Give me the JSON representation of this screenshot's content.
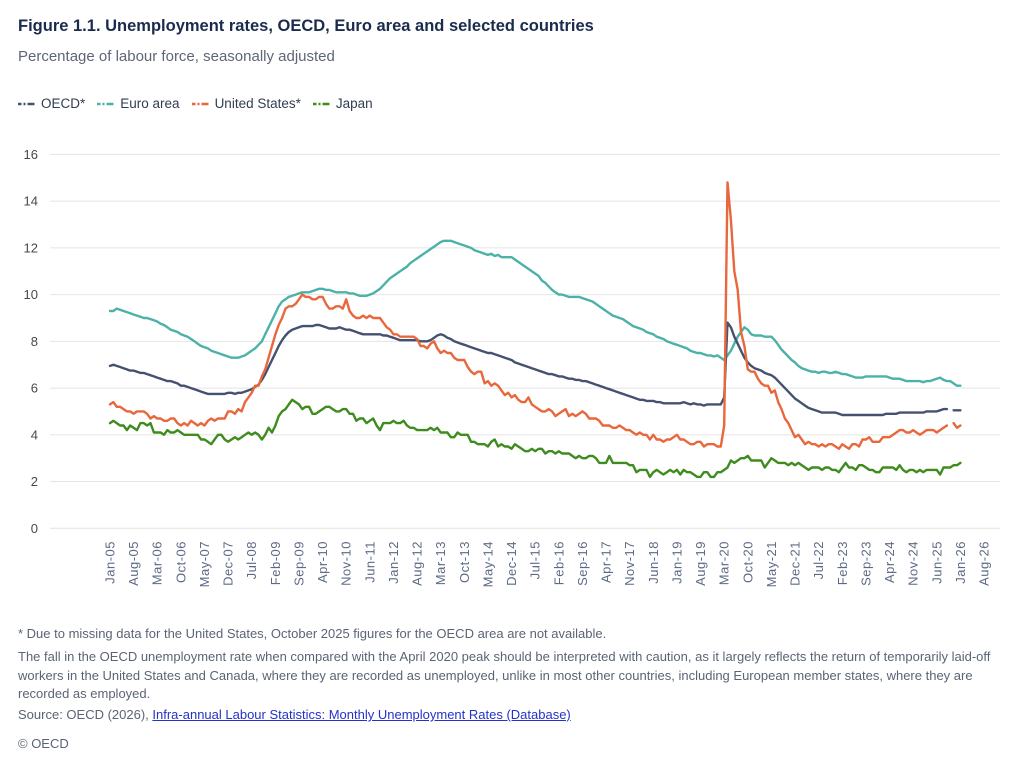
{
  "figure": {
    "title": "Figure 1.1. Unemployment rates, OECD, Euro area and selected countries",
    "subtitle": "Percentage of labour force, seasonally adjusted"
  },
  "legend": [
    {
      "label": "OECD*",
      "color": "#445270"
    },
    {
      "label": "Euro area",
      "color": "#4cb2a7"
    },
    {
      "label": "United States*",
      "color": "#e9673c"
    },
    {
      "label": "Japan",
      "color": "#3f8c1e"
    }
  ],
  "chart_data": {
    "type": "line",
    "x_unit": "month",
    "x_start": "Jan-05",
    "x_axis_end": "Aug-26",
    "x_tick_step_months": 7,
    "x_tick_labels": [
      "Jan-05",
      "Aug-05",
      "Mar-06",
      "Oct-06",
      "May-07",
      "Dec-07",
      "Jul-08",
      "Feb-09",
      "Sep-09",
      "Apr-10",
      "Nov-10",
      "Jun-11",
      "Jan-12",
      "Aug-12",
      "Mar-13",
      "Oct-13",
      "May-14",
      "Dec-14",
      "Jul-15",
      "Feb-16",
      "Sep-16",
      "Apr-17",
      "Nov-17",
      "Jun-18",
      "Jan-19",
      "Aug-19",
      "Mar-20",
      "Oct-20",
      "May-21",
      "Dec-21",
      "Jul-22",
      "Feb-23",
      "Sep-23",
      "Apr-24",
      "Nov-24",
      "Jun-25",
      "Jan-26",
      "Aug-26"
    ],
    "ylim": [
      0,
      16
    ],
    "y_ticks": [
      0,
      2,
      4,
      6,
      8,
      10,
      12,
      14,
      16
    ],
    "grid": true,
    "legend_position": "top-left",
    "series": [
      {
        "name": "OECD*",
        "color": "#445270",
        "values": [
          6.95,
          7.0,
          6.95,
          6.9,
          6.85,
          6.8,
          6.75,
          6.75,
          6.7,
          6.65,
          6.65,
          6.6,
          6.55,
          6.5,
          6.45,
          6.4,
          6.35,
          6.3,
          6.3,
          6.25,
          6.2,
          6.1,
          6.1,
          6.05,
          6.0,
          5.95,
          5.9,
          5.85,
          5.8,
          5.75,
          5.75,
          5.75,
          5.75,
          5.75,
          5.75,
          5.8,
          5.8,
          5.75,
          5.8,
          5.8,
          5.85,
          5.9,
          5.95,
          6.05,
          6.15,
          6.35,
          6.6,
          6.9,
          7.2,
          7.5,
          7.8,
          8.05,
          8.25,
          8.4,
          8.5,
          8.55,
          8.6,
          8.65,
          8.65,
          8.65,
          8.65,
          8.7,
          8.7,
          8.65,
          8.6,
          8.55,
          8.55,
          8.55,
          8.6,
          8.55,
          8.5,
          8.5,
          8.45,
          8.4,
          8.35,
          8.3,
          8.3,
          8.3,
          8.3,
          8.3,
          8.3,
          8.25,
          8.25,
          8.2,
          8.15,
          8.1,
          8.05,
          8.05,
          8.05,
          8.05,
          8.05,
          8.05,
          8.0,
          8.0,
          8.0,
          8.05,
          8.15,
          8.25,
          8.3,
          8.25,
          8.15,
          8.1,
          8.0,
          7.95,
          7.9,
          7.85,
          7.8,
          7.75,
          7.7,
          7.65,
          7.6,
          7.55,
          7.5,
          7.5,
          7.45,
          7.4,
          7.35,
          7.3,
          7.25,
          7.2,
          7.1,
          7.05,
          7.0,
          6.95,
          6.9,
          6.85,
          6.8,
          6.75,
          6.7,
          6.65,
          6.6,
          6.6,
          6.55,
          6.5,
          6.5,
          6.45,
          6.4,
          6.4,
          6.35,
          6.35,
          6.3,
          6.3,
          6.25,
          6.2,
          6.15,
          6.1,
          6.05,
          6.0,
          5.95,
          5.9,
          5.85,
          5.8,
          5.75,
          5.7,
          5.65,
          5.6,
          5.55,
          5.5,
          5.5,
          5.45,
          5.45,
          5.45,
          5.4,
          5.4,
          5.35,
          5.35,
          5.35,
          5.35,
          5.35,
          5.35,
          5.4,
          5.35,
          5.3,
          5.35,
          5.3,
          5.3,
          5.25,
          5.3,
          5.3,
          5.3,
          5.3,
          5.3,
          5.6,
          8.8,
          8.6,
          8.2,
          7.9,
          7.6,
          7.3,
          7.1,
          6.95,
          6.85,
          6.8,
          6.75,
          6.65,
          6.6,
          6.55,
          6.45,
          6.3,
          6.15,
          6.0,
          5.85,
          5.7,
          5.55,
          5.45,
          5.35,
          5.25,
          5.15,
          5.1,
          5.05,
          5.0,
          4.95,
          4.95,
          4.95,
          4.95,
          4.95,
          4.9,
          4.85,
          4.85,
          4.85,
          4.85,
          4.85,
          4.85,
          4.85,
          4.85,
          4.85,
          4.85,
          4.85,
          4.85,
          4.85,
          4.9,
          4.9,
          4.9,
          4.9,
          4.95,
          4.95,
          4.95,
          4.95,
          4.95,
          4.95,
          4.95,
          4.95,
          5.0,
          5.0,
          5.0,
          5.0,
          5.05,
          5.1,
          5.1,
          null,
          5.05,
          5.05,
          5.05
        ]
      },
      {
        "name": "Euro area",
        "color": "#4cb2a7",
        "values": [
          9.3,
          9.3,
          9.4,
          9.35,
          9.3,
          9.25,
          9.2,
          9.15,
          9.1,
          9.05,
          9.0,
          9.0,
          8.95,
          8.9,
          8.85,
          8.75,
          8.7,
          8.6,
          8.5,
          8.45,
          8.4,
          8.3,
          8.25,
          8.2,
          8.1,
          8.0,
          7.9,
          7.8,
          7.75,
          7.7,
          7.6,
          7.55,
          7.5,
          7.45,
          7.4,
          7.35,
          7.3,
          7.3,
          7.3,
          7.35,
          7.4,
          7.5,
          7.6,
          7.7,
          7.85,
          8.0,
          8.3,
          8.6,
          8.9,
          9.2,
          9.5,
          9.7,
          9.8,
          9.9,
          9.95,
          10.0,
          10.05,
          10.1,
          10.1,
          10.1,
          10.15,
          10.2,
          10.25,
          10.25,
          10.2,
          10.2,
          10.15,
          10.1,
          10.1,
          10.1,
          10.1,
          10.05,
          10.05,
          10.0,
          9.95,
          9.95,
          9.95,
          10.0,
          10.05,
          10.15,
          10.25,
          10.4,
          10.55,
          10.7,
          10.8,
          10.9,
          11.0,
          11.1,
          11.2,
          11.35,
          11.45,
          11.55,
          11.65,
          11.75,
          11.85,
          11.95,
          12.05,
          12.15,
          12.25,
          12.3,
          12.3,
          12.3,
          12.25,
          12.2,
          12.15,
          12.1,
          12.05,
          12.0,
          11.9,
          11.85,
          11.8,
          11.75,
          11.7,
          11.75,
          11.65,
          11.7,
          11.6,
          11.6,
          11.6,
          11.6,
          11.5,
          11.4,
          11.3,
          11.2,
          11.1,
          11.0,
          10.9,
          10.8,
          10.6,
          10.5,
          10.35,
          10.2,
          10.1,
          10.0,
          10.0,
          9.95,
          9.9,
          9.9,
          9.9,
          9.9,
          9.85,
          9.8,
          9.75,
          9.7,
          9.6,
          9.5,
          9.4,
          9.3,
          9.2,
          9.1,
          9.05,
          9.0,
          8.95,
          8.85,
          8.75,
          8.65,
          8.6,
          8.55,
          8.5,
          8.4,
          8.35,
          8.3,
          8.2,
          8.15,
          8.1,
          8.0,
          7.95,
          7.9,
          7.85,
          7.8,
          7.75,
          7.7,
          7.6,
          7.55,
          7.5,
          7.5,
          7.45,
          7.4,
          7.4,
          7.35,
          7.4,
          7.3,
          7.2,
          7.4,
          7.6,
          7.9,
          8.2,
          8.4,
          8.6,
          8.5,
          8.3,
          8.25,
          8.25,
          8.25,
          8.2,
          8.2,
          8.2,
          8.05,
          7.85,
          7.65,
          7.5,
          7.35,
          7.2,
          7.1,
          6.95,
          6.85,
          6.8,
          6.75,
          6.7,
          6.7,
          6.65,
          6.7,
          6.7,
          6.65,
          6.65,
          6.7,
          6.65,
          6.6,
          6.6,
          6.55,
          6.5,
          6.45,
          6.45,
          6.45,
          6.5,
          6.5,
          6.5,
          6.5,
          6.5,
          6.5,
          6.5,
          6.45,
          6.4,
          6.4,
          6.4,
          6.35,
          6.3,
          6.3,
          6.3,
          6.3,
          6.3,
          6.25,
          6.3,
          6.3,
          6.35,
          6.4,
          6.45,
          6.35,
          6.3,
          6.3,
          6.2,
          6.1,
          6.1
        ]
      },
      {
        "name": "United States*",
        "color": "#e9673c",
        "values": [
          5.3,
          5.4,
          5.2,
          5.2,
          5.1,
          5.0,
          5.0,
          4.9,
          5.0,
          5.0,
          5.0,
          4.9,
          4.7,
          4.8,
          4.7,
          4.7,
          4.6,
          4.6,
          4.7,
          4.7,
          4.5,
          4.4,
          4.5,
          4.4,
          4.6,
          4.5,
          4.4,
          4.5,
          4.4,
          4.6,
          4.7,
          4.6,
          4.7,
          4.7,
          4.7,
          5.0,
          5.0,
          4.9,
          5.1,
          5.0,
          5.4,
          5.6,
          5.8,
          6.1,
          6.1,
          6.5,
          6.8,
          7.3,
          7.8,
          8.3,
          8.7,
          9.0,
          9.4,
          9.5,
          9.5,
          9.6,
          9.8,
          10.0,
          9.9,
          9.9,
          9.8,
          9.8,
          9.9,
          9.9,
          9.6,
          9.4,
          9.4,
          9.5,
          9.5,
          9.4,
          9.8,
          9.3,
          9.1,
          9.0,
          9.0,
          9.1,
          9.0,
          9.1,
          9.0,
          9.0,
          9.0,
          8.8,
          8.6,
          8.5,
          8.3,
          8.3,
          8.2,
          8.2,
          8.2,
          8.2,
          8.2,
          8.1,
          7.8,
          7.8,
          7.7,
          7.9,
          8.0,
          7.7,
          7.5,
          7.6,
          7.5,
          7.5,
          7.3,
          7.2,
          7.2,
          7.2,
          6.9,
          6.7,
          6.6,
          6.7,
          6.7,
          6.2,
          6.3,
          6.1,
          6.2,
          6.1,
          5.9,
          5.7,
          5.8,
          5.6,
          5.7,
          5.5,
          5.4,
          5.4,
          5.6,
          5.3,
          5.2,
          5.1,
          5.0,
          5.0,
          5.1,
          5.0,
          4.8,
          4.9,
          5.0,
          5.1,
          4.8,
          4.9,
          4.8,
          4.9,
          5.0,
          4.9,
          4.7,
          4.7,
          4.7,
          4.6,
          4.4,
          4.4,
          4.4,
          4.3,
          4.3,
          4.4,
          4.3,
          4.2,
          4.2,
          4.1,
          4.0,
          4.1,
          4.0,
          4.0,
          3.8,
          4.0,
          3.8,
          3.8,
          3.7,
          3.8,
          3.8,
          3.9,
          4.0,
          3.8,
          3.8,
          3.7,
          3.6,
          3.6,
          3.7,
          3.7,
          3.5,
          3.6,
          3.6,
          3.6,
          3.5,
          3.5,
          4.4,
          14.8,
          13.2,
          11.0,
          10.2,
          8.4,
          7.8,
          6.8,
          6.7,
          6.7,
          6.4,
          6.2,
          6.1,
          6.1,
          5.8,
          5.9,
          5.4,
          5.1,
          4.7,
          4.5,
          4.2,
          3.9,
          4.0,
          3.8,
          3.6,
          3.7,
          3.6,
          3.6,
          3.5,
          3.6,
          3.5,
          3.6,
          3.6,
          3.5,
          3.4,
          3.6,
          3.5,
          3.4,
          3.6,
          3.6,
          3.5,
          3.8,
          3.8,
          3.9,
          3.7,
          3.7,
          3.7,
          3.9,
          3.9,
          3.9,
          4.0,
          4.1,
          4.2,
          4.2,
          4.1,
          4.1,
          4.2,
          4.1,
          4.0,
          4.1,
          4.2,
          4.2,
          4.2,
          4.1,
          4.2,
          4.3,
          4.4,
          null,
          4.5,
          4.3,
          4.4
        ]
      },
      {
        "name": "Japan",
        "color": "#3f8c1e",
        "values": [
          4.5,
          4.6,
          4.5,
          4.4,
          4.4,
          4.2,
          4.4,
          4.3,
          4.2,
          4.5,
          4.5,
          4.4,
          4.5,
          4.1,
          4.1,
          4.1,
          4.0,
          4.2,
          4.1,
          4.1,
          4.2,
          4.1,
          4.0,
          4.0,
          4.0,
          4.0,
          4.0,
          3.8,
          3.8,
          3.7,
          3.6,
          3.8,
          4.0,
          4.0,
          3.8,
          3.7,
          3.8,
          3.9,
          3.8,
          3.9,
          4.0,
          4.1,
          4.0,
          4.1,
          4.0,
          3.8,
          4.0,
          4.3,
          4.1,
          4.4,
          4.8,
          5.0,
          5.1,
          5.3,
          5.5,
          5.4,
          5.3,
          5.1,
          5.2,
          5.2,
          4.9,
          4.9,
          5.0,
          5.1,
          5.2,
          5.2,
          5.1,
          5.0,
          5.0,
          5.1,
          5.1,
          4.9,
          4.9,
          4.6,
          4.7,
          4.7,
          4.5,
          4.6,
          4.7,
          4.4,
          4.2,
          4.5,
          4.5,
          4.5,
          4.6,
          4.5,
          4.5,
          4.6,
          4.4,
          4.3,
          4.3,
          4.2,
          4.2,
          4.2,
          4.2,
          4.3,
          4.2,
          4.3,
          4.1,
          4.1,
          4.1,
          3.9,
          3.9,
          4.1,
          4.0,
          4.0,
          4.0,
          3.7,
          3.7,
          3.6,
          3.6,
          3.6,
          3.5,
          3.7,
          3.8,
          3.5,
          3.6,
          3.5,
          3.5,
          3.4,
          3.6,
          3.5,
          3.4,
          3.3,
          3.3,
          3.4,
          3.3,
          3.4,
          3.4,
          3.2,
          3.3,
          3.3,
          3.2,
          3.3,
          3.2,
          3.2,
          3.2,
          3.1,
          3.0,
          3.1,
          3.0,
          3.0,
          3.1,
          3.1,
          3.0,
          2.8,
          2.8,
          2.8,
          3.1,
          2.8,
          2.8,
          2.8,
          2.8,
          2.8,
          2.7,
          2.7,
          2.4,
          2.5,
          2.5,
          2.5,
          2.2,
          2.4,
          2.5,
          2.4,
          2.3,
          2.4,
          2.5,
          2.4,
          2.5,
          2.3,
          2.5,
          2.4,
          2.4,
          2.3,
          2.2,
          2.2,
          2.4,
          2.4,
          2.2,
          2.2,
          2.4,
          2.4,
          2.5,
          2.6,
          2.9,
          2.8,
          2.9,
          3.0,
          3.0,
          3.1,
          2.9,
          2.9,
          2.9,
          2.9,
          2.6,
          2.8,
          3.0,
          2.9,
          2.8,
          2.8,
          2.8,
          2.7,
          2.8,
          2.7,
          2.8,
          2.7,
          2.6,
          2.5,
          2.6,
          2.6,
          2.6,
          2.5,
          2.6,
          2.6,
          2.5,
          2.5,
          2.4,
          2.6,
          2.8,
          2.6,
          2.6,
          2.5,
          2.7,
          2.7,
          2.6,
          2.5,
          2.5,
          2.4,
          2.4,
          2.6,
          2.6,
          2.6,
          2.6,
          2.5,
          2.7,
          2.5,
          2.4,
          2.5,
          2.5,
          2.4,
          2.5,
          2.4,
          2.5,
          2.5,
          2.5,
          2.5,
          2.3,
          2.6,
          2.6,
          2.6,
          2.7,
          2.7,
          2.8
        ]
      }
    ]
  },
  "footnotes": {
    "asterisk": "* Due to missing data for the United States, October 2025 figures for the OECD area are not available.",
    "caution": "The fall in the OECD unemployment rate when compared with the April 2020 peak should be interpreted with caution, as it largely reflects the return of temporarily laid-off workers in the United States and Canada, where they are recorded as unemployed, unlike in most other countries, including European member states, where they are recorded as employed."
  },
  "source": {
    "prefix": "Source: OECD (2026), ",
    "link_text": "Infra-annual Labour Statistics: Monthly Unemployment Rates (Database)"
  },
  "copyright": "© OECD",
  "colors": {
    "title": "#1a2b4d",
    "grid": "#e4e4e4",
    "axis_label": "#5d6a85",
    "link": "#2432c8"
  }
}
